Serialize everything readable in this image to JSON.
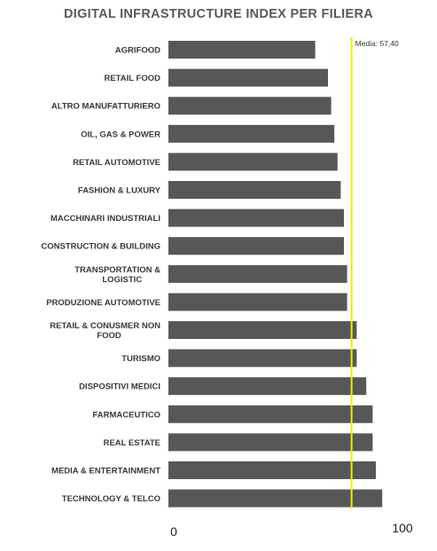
{
  "chart_data": {
    "type": "bar",
    "orientation": "horizontal",
    "title": "DIGITAL INFRASTRUCTURE INDEX PER FILIERA",
    "categories": [
      "AGRIFOOD",
      "RETAIL FOOD",
      "ALTRO MANUFATTURIERO",
      "OIL, GAS & POWER",
      "RETAIL AUTOMOTIVE",
      "FASHION & LUXURY",
      "MACCHINARI INDUSTRIALI",
      "CONSTRUCTION & BUILDING",
      "TRANSPORTATION & LOGISTIC",
      "PRODUZIONE AUTOMOTIVE",
      "RETAIL & CONUSMER NON FOOD",
      "TURISMO",
      "DISPOSITIVI MEDICI",
      "FARMACEUTICO",
      "REAL ESTATE",
      "MEDIA & ENTERTAINMENT",
      "TECHNOLOGY & TELCO"
    ],
    "values": [
      46,
      50,
      51,
      52,
      53,
      54,
      55,
      55,
      56,
      56,
      59,
      59,
      62,
      64,
      64,
      65,
      67
    ],
    "xlim": [
      0,
      100
    ],
    "x_ticks": [
      "0",
      "100"
    ],
    "reference_line": {
      "label": "Media: 57,40",
      "value": 57.4,
      "color": "#ffe500"
    },
    "bar_color": "#575757",
    "grid": false,
    "legend": "none"
  }
}
